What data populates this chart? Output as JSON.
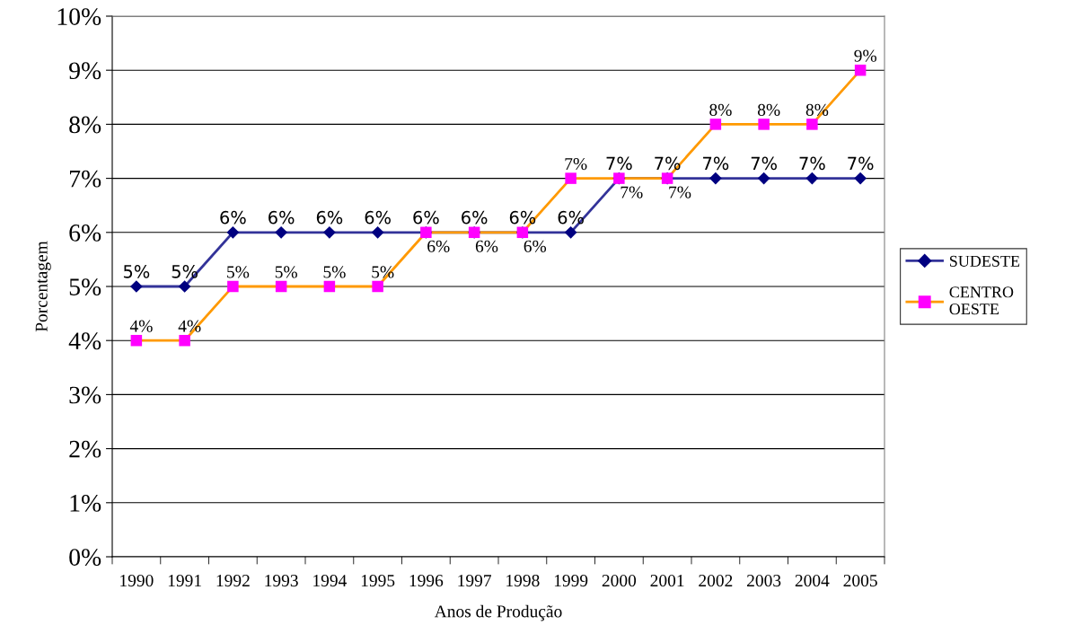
{
  "chart_data": {
    "type": "line",
    "xlabel": "Anos de Produção",
    "ylabel": "Porcentagem",
    "categories": [
      "1990",
      "1991",
      "1992",
      "1993",
      "1994",
      "1995",
      "1996",
      "1997",
      "1998",
      "1999",
      "2000",
      "2001",
      "2002",
      "2003",
      "2004",
      "2005"
    ],
    "ylim": [
      0,
      10
    ],
    "yticks": [
      {
        "value": 0,
        "label": "0%"
      },
      {
        "value": 1,
        "label": "1%"
      },
      {
        "value": 2,
        "label": "2%"
      },
      {
        "value": 3,
        "label": "3%"
      },
      {
        "value": 4,
        "label": "4%"
      },
      {
        "value": 5,
        "label": "5%"
      },
      {
        "value": 6,
        "label": "6%"
      },
      {
        "value": 7,
        "label": "7%"
      },
      {
        "value": 8,
        "label": "8%"
      },
      {
        "value": 9,
        "label": "9%"
      },
      {
        "value": 10,
        "label": "10%"
      }
    ],
    "grid": "y",
    "legend": "right",
    "series": [
      {
        "name": "SUDESTE",
        "color": "#333399",
        "colors": [
          "#000080",
          "#000080",
          "#000080",
          "#000080",
          "#000080",
          "#000080",
          "#000080",
          "#000080",
          "#000080",
          "#000080",
          "#000080",
          "#000080",
          "#000080",
          "#000080",
          "#000080",
          "#000080"
        ],
        "marker": "diamond",
        "values": [
          5,
          5,
          6,
          6,
          6,
          6,
          6,
          6,
          6,
          6,
          7,
          7,
          7,
          7,
          7,
          7
        ],
        "value_labels": [
          "5%",
          "5%",
          "6%",
          "6%",
          "6%",
          "6%",
          "6%",
          "6%",
          "6%",
          "6%",
          "7%",
          "7%",
          "7%",
          "7%",
          "7%",
          "7%"
        ]
      },
      {
        "name": "CENTRO OESTE",
        "color": "#ff9900",
        "colors": [
          "#ff00ff",
          "#ff00ff",
          "#ff00ff",
          "#ff00ff",
          "#ff00ff",
          "#ff00ff",
          "#ff00ff",
          "#ff00ff",
          "#ff00ff",
          "#ff00ff",
          "#ff00ff",
          "#ff00ff",
          "#ff00ff",
          "#ff00ff",
          "#ff00ff",
          "#ff00ff"
        ],
        "marker": "square",
        "values": [
          4,
          4,
          5,
          5,
          5,
          5,
          6,
          6,
          6,
          7,
          7,
          7,
          8,
          8,
          8,
          9
        ],
        "value_labels": [
          "4%",
          "4%",
          "5%",
          "5%",
          "5%",
          "5%",
          "6%",
          "6%",
          "6%",
          "7%",
          "7%",
          "7%",
          "8%",
          "8%",
          "8%",
          "9%"
        ]
      }
    ]
  }
}
